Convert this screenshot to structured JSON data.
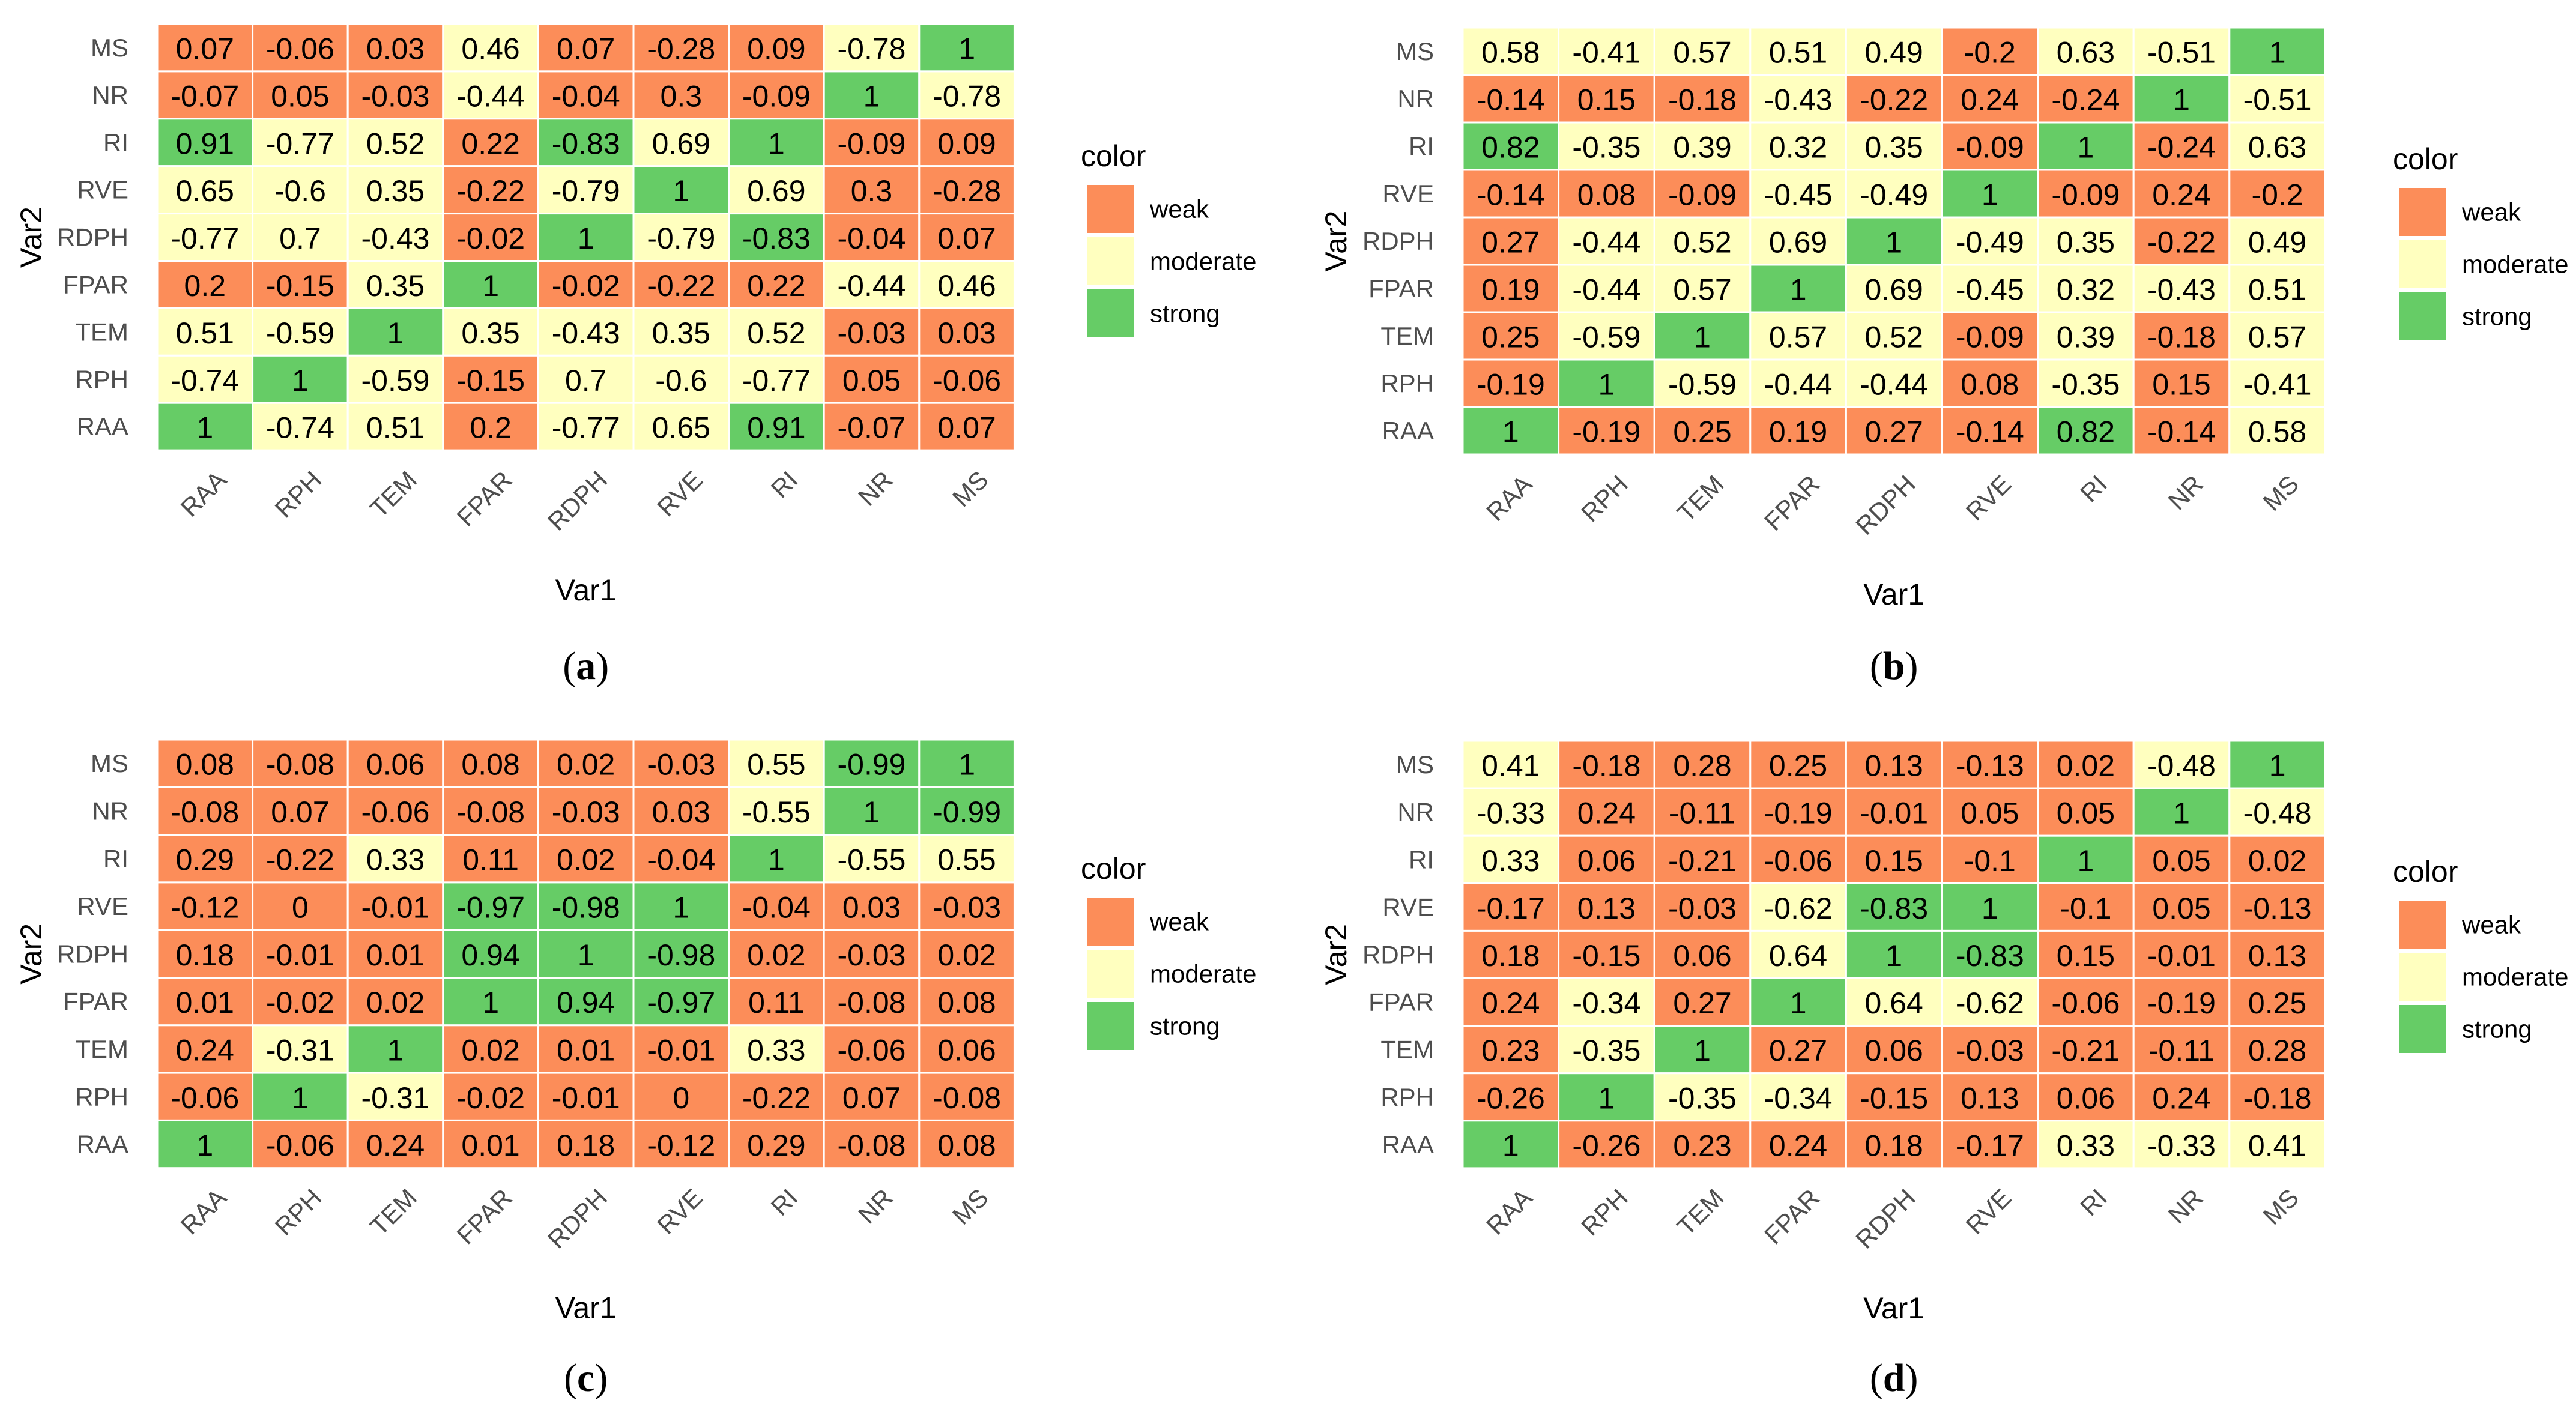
{
  "colors": {
    "weak": "#fc8d59",
    "moderate": "#ffffbf",
    "strong": "#66cc66",
    "grid": "#ffffff"
  },
  "chart_data": [
    {
      "type": "heatmap",
      "panel": "a",
      "xlabel": "Var1",
      "ylabel": "Var2",
      "x_categories": [
        "RAA",
        "RPH",
        "TEM",
        "FPAR",
        "RDPH",
        "RVE",
        "RI",
        "NR",
        "MS"
      ],
      "y_categories_top_to_bottom": [
        "MS",
        "NR",
        "RI",
        "RVE",
        "RDPH",
        "FPAR",
        "TEM",
        "RPH",
        "RAA"
      ],
      "legend_title": "color",
      "legend_entries": [
        "weak",
        "moderate",
        "strong"
      ],
      "rows": [
        {
          "values": [
            "0.07",
            "-0.06",
            "0.03",
            "0.46",
            "0.07",
            "-0.28",
            "0.09",
            "-0.78",
            "1"
          ],
          "classes": [
            "weak",
            "weak",
            "weak",
            "moderate",
            "weak",
            "weak",
            "weak",
            "moderate",
            "strong"
          ]
        },
        {
          "values": [
            "-0.07",
            "0.05",
            "-0.03",
            "-0.44",
            "-0.04",
            "0.3",
            "-0.09",
            "1",
            "-0.78"
          ],
          "classes": [
            "weak",
            "weak",
            "weak",
            "moderate",
            "weak",
            "weak",
            "weak",
            "strong",
            "moderate"
          ]
        },
        {
          "values": [
            "0.91",
            "-0.77",
            "0.52",
            "0.22",
            "-0.83",
            "0.69",
            "1",
            "-0.09",
            "0.09"
          ],
          "classes": [
            "strong",
            "moderate",
            "moderate",
            "weak",
            "strong",
            "moderate",
            "strong",
            "weak",
            "weak"
          ]
        },
        {
          "values": [
            "0.65",
            "-0.6",
            "0.35",
            "-0.22",
            "-0.79",
            "1",
            "0.69",
            "0.3",
            "-0.28"
          ],
          "classes": [
            "moderate",
            "moderate",
            "moderate",
            "weak",
            "moderate",
            "strong",
            "moderate",
            "weak",
            "weak"
          ]
        },
        {
          "values": [
            "-0.77",
            "0.7",
            "-0.43",
            "-0.02",
            "1",
            "-0.79",
            "-0.83",
            "-0.04",
            "0.07"
          ],
          "classes": [
            "moderate",
            "moderate",
            "moderate",
            "weak",
            "strong",
            "moderate",
            "strong",
            "weak",
            "weak"
          ]
        },
        {
          "values": [
            "0.2",
            "-0.15",
            "0.35",
            "1",
            "-0.02",
            "-0.22",
            "0.22",
            "-0.44",
            "0.46"
          ],
          "classes": [
            "weak",
            "weak",
            "moderate",
            "strong",
            "weak",
            "weak",
            "weak",
            "moderate",
            "moderate"
          ]
        },
        {
          "values": [
            "0.51",
            "-0.59",
            "1",
            "0.35",
            "-0.43",
            "0.35",
            "0.52",
            "-0.03",
            "0.03"
          ],
          "classes": [
            "moderate",
            "moderate",
            "strong",
            "moderate",
            "moderate",
            "moderate",
            "moderate",
            "weak",
            "weak"
          ]
        },
        {
          "values": [
            "-0.74",
            "1",
            "-0.59",
            "-0.15",
            "0.7",
            "-0.6",
            "-0.77",
            "0.05",
            "-0.06"
          ],
          "classes": [
            "moderate",
            "strong",
            "moderate",
            "weak",
            "moderate",
            "moderate",
            "moderate",
            "weak",
            "weak"
          ]
        },
        {
          "values": [
            "1",
            "-0.74",
            "0.51",
            "0.2",
            "-0.77",
            "0.65",
            "0.91",
            "-0.07",
            "0.07"
          ],
          "classes": [
            "strong",
            "moderate",
            "moderate",
            "weak",
            "moderate",
            "moderate",
            "strong",
            "weak",
            "weak"
          ]
        }
      ]
    },
    {
      "type": "heatmap",
      "panel": "b",
      "xlabel": "Var1",
      "ylabel": "Var2",
      "x_categories": [
        "RAA",
        "RPH",
        "TEM",
        "FPAR",
        "RDPH",
        "RVE",
        "RI",
        "NR",
        "MS"
      ],
      "y_categories_top_to_bottom": [
        "MS",
        "NR",
        "RI",
        "RVE",
        "RDPH",
        "FPAR",
        "TEM",
        "RPH",
        "RAA"
      ],
      "legend_title": "color",
      "legend_entries": [
        "weak",
        "moderate",
        "strong"
      ],
      "rows": [
        {
          "values": [
            "0.58",
            "-0.41",
            "0.57",
            "0.51",
            "0.49",
            "-0.2",
            "0.63",
            "-0.51",
            "1"
          ],
          "classes": [
            "moderate",
            "moderate",
            "moderate",
            "moderate",
            "moderate",
            "weak",
            "moderate",
            "moderate",
            "strong"
          ]
        },
        {
          "values": [
            "-0.14",
            "0.15",
            "-0.18",
            "-0.43",
            "-0.22",
            "0.24",
            "-0.24",
            "1",
            "-0.51"
          ],
          "classes": [
            "weak",
            "weak",
            "weak",
            "moderate",
            "weak",
            "weak",
            "weak",
            "strong",
            "moderate"
          ]
        },
        {
          "values": [
            "0.82",
            "-0.35",
            "0.39",
            "0.32",
            "0.35",
            "-0.09",
            "1",
            "-0.24",
            "0.63"
          ],
          "classes": [
            "strong",
            "moderate",
            "moderate",
            "moderate",
            "moderate",
            "weak",
            "strong",
            "weak",
            "moderate"
          ]
        },
        {
          "values": [
            "-0.14",
            "0.08",
            "-0.09",
            "-0.45",
            "-0.49",
            "1",
            "-0.09",
            "0.24",
            "-0.2"
          ],
          "classes": [
            "weak",
            "weak",
            "weak",
            "moderate",
            "moderate",
            "strong",
            "weak",
            "weak",
            "weak"
          ]
        },
        {
          "values": [
            "0.27",
            "-0.44",
            "0.52",
            "0.69",
            "1",
            "-0.49",
            "0.35",
            "-0.22",
            "0.49"
          ],
          "classes": [
            "weak",
            "moderate",
            "moderate",
            "moderate",
            "strong",
            "moderate",
            "moderate",
            "weak",
            "moderate"
          ]
        },
        {
          "values": [
            "0.19",
            "-0.44",
            "0.57",
            "1",
            "0.69",
            "-0.45",
            "0.32",
            "-0.43",
            "0.51"
          ],
          "classes": [
            "weak",
            "moderate",
            "moderate",
            "strong",
            "moderate",
            "moderate",
            "moderate",
            "moderate",
            "moderate"
          ]
        },
        {
          "values": [
            "0.25",
            "-0.59",
            "1",
            "0.57",
            "0.52",
            "-0.09",
            "0.39",
            "-0.18",
            "0.57"
          ],
          "classes": [
            "weak",
            "moderate",
            "strong",
            "moderate",
            "moderate",
            "weak",
            "moderate",
            "weak",
            "moderate"
          ]
        },
        {
          "values": [
            "-0.19",
            "1",
            "-0.59",
            "-0.44",
            "-0.44",
            "0.08",
            "-0.35",
            "0.15",
            "-0.41"
          ],
          "classes": [
            "weak",
            "strong",
            "moderate",
            "moderate",
            "moderate",
            "weak",
            "moderate",
            "weak",
            "moderate"
          ]
        },
        {
          "values": [
            "1",
            "-0.19",
            "0.25",
            "0.19",
            "0.27",
            "-0.14",
            "0.82",
            "-0.14",
            "0.58"
          ],
          "classes": [
            "strong",
            "weak",
            "weak",
            "weak",
            "weak",
            "weak",
            "strong",
            "weak",
            "moderate"
          ]
        }
      ]
    },
    {
      "type": "heatmap",
      "panel": "c",
      "xlabel": "Var1",
      "ylabel": "Var2",
      "x_categories": [
        "RAA",
        "RPH",
        "TEM",
        "FPAR",
        "RDPH",
        "RVE",
        "RI",
        "NR",
        "MS"
      ],
      "y_categories_top_to_bottom": [
        "MS",
        "NR",
        "RI",
        "RVE",
        "RDPH",
        "FPAR",
        "TEM",
        "RPH",
        "RAA"
      ],
      "legend_title": "color",
      "legend_entries": [
        "weak",
        "moderate",
        "strong"
      ],
      "rows": [
        {
          "values": [
            "0.08",
            "-0.08",
            "0.06",
            "0.08",
            "0.02",
            "-0.03",
            "0.55",
            "-0.99",
            "1"
          ],
          "classes": [
            "weak",
            "weak",
            "weak",
            "weak",
            "weak",
            "weak",
            "moderate",
            "strong",
            "strong"
          ]
        },
        {
          "values": [
            "-0.08",
            "0.07",
            "-0.06",
            "-0.08",
            "-0.03",
            "0.03",
            "-0.55",
            "1",
            "-0.99"
          ],
          "classes": [
            "weak",
            "weak",
            "weak",
            "weak",
            "weak",
            "weak",
            "moderate",
            "strong",
            "strong"
          ]
        },
        {
          "values": [
            "0.29",
            "-0.22",
            "0.33",
            "0.11",
            "0.02",
            "-0.04",
            "1",
            "-0.55",
            "0.55"
          ],
          "classes": [
            "weak",
            "weak",
            "moderate",
            "weak",
            "weak",
            "weak",
            "strong",
            "moderate",
            "moderate"
          ]
        },
        {
          "values": [
            "-0.12",
            "0",
            "-0.01",
            "-0.97",
            "-0.98",
            "1",
            "-0.04",
            "0.03",
            "-0.03"
          ],
          "classes": [
            "weak",
            "weak",
            "weak",
            "strong",
            "strong",
            "strong",
            "weak",
            "weak",
            "weak"
          ]
        },
        {
          "values": [
            "0.18",
            "-0.01",
            "0.01",
            "0.94",
            "1",
            "-0.98",
            "0.02",
            "-0.03",
            "0.02"
          ],
          "classes": [
            "weak",
            "weak",
            "weak",
            "strong",
            "strong",
            "strong",
            "weak",
            "weak",
            "weak"
          ]
        },
        {
          "values": [
            "0.01",
            "-0.02",
            "0.02",
            "1",
            "0.94",
            "-0.97",
            "0.11",
            "-0.08",
            "0.08"
          ],
          "classes": [
            "weak",
            "weak",
            "weak",
            "strong",
            "strong",
            "strong",
            "weak",
            "weak",
            "weak"
          ]
        },
        {
          "values": [
            "0.24",
            "-0.31",
            "1",
            "0.02",
            "0.01",
            "-0.01",
            "0.33",
            "-0.06",
            "0.06"
          ],
          "classes": [
            "weak",
            "moderate",
            "strong",
            "weak",
            "weak",
            "weak",
            "moderate",
            "weak",
            "weak"
          ]
        },
        {
          "values": [
            "-0.06",
            "1",
            "-0.31",
            "-0.02",
            "-0.01",
            "0",
            "-0.22",
            "0.07",
            "-0.08"
          ],
          "classes": [
            "weak",
            "strong",
            "moderate",
            "weak",
            "weak",
            "weak",
            "weak",
            "weak",
            "weak"
          ]
        },
        {
          "values": [
            "1",
            "-0.06",
            "0.24",
            "0.01",
            "0.18",
            "-0.12",
            "0.29",
            "-0.08",
            "0.08"
          ],
          "classes": [
            "strong",
            "weak",
            "weak",
            "weak",
            "weak",
            "weak",
            "weak",
            "weak",
            "weak"
          ]
        }
      ]
    },
    {
      "type": "heatmap",
      "panel": "d",
      "xlabel": "Var1",
      "ylabel": "Var2",
      "x_categories": [
        "RAA",
        "RPH",
        "TEM",
        "FPAR",
        "RDPH",
        "RVE",
        "RI",
        "NR",
        "MS"
      ],
      "y_categories_top_to_bottom": [
        "MS",
        "NR",
        "RI",
        "RVE",
        "RDPH",
        "FPAR",
        "TEM",
        "RPH",
        "RAA"
      ],
      "legend_title": "color",
      "legend_entries": [
        "weak",
        "moderate",
        "strong"
      ],
      "rows": [
        {
          "values": [
            "0.41",
            "-0.18",
            "0.28",
            "0.25",
            "0.13",
            "-0.13",
            "0.02",
            "-0.48",
            "1"
          ],
          "classes": [
            "moderate",
            "weak",
            "weak",
            "weak",
            "weak",
            "weak",
            "weak",
            "moderate",
            "strong"
          ]
        },
        {
          "values": [
            "-0.33",
            "0.24",
            "-0.11",
            "-0.19",
            "-0.01",
            "0.05",
            "0.05",
            "1",
            "-0.48"
          ],
          "classes": [
            "moderate",
            "weak",
            "weak",
            "weak",
            "weak",
            "weak",
            "weak",
            "strong",
            "moderate"
          ]
        },
        {
          "values": [
            "0.33",
            "0.06",
            "-0.21",
            "-0.06",
            "0.15",
            "-0.1",
            "1",
            "0.05",
            "0.02"
          ],
          "classes": [
            "moderate",
            "weak",
            "weak",
            "weak",
            "weak",
            "weak",
            "strong",
            "weak",
            "weak"
          ]
        },
        {
          "values": [
            "-0.17",
            "0.13",
            "-0.03",
            "-0.62",
            "-0.83",
            "1",
            "-0.1",
            "0.05",
            "-0.13"
          ],
          "classes": [
            "weak",
            "weak",
            "weak",
            "moderate",
            "strong",
            "strong",
            "weak",
            "weak",
            "weak"
          ]
        },
        {
          "values": [
            "0.18",
            "-0.15",
            "0.06",
            "0.64",
            "1",
            "-0.83",
            "0.15",
            "-0.01",
            "0.13"
          ],
          "classes": [
            "weak",
            "weak",
            "weak",
            "moderate",
            "strong",
            "strong",
            "weak",
            "weak",
            "weak"
          ]
        },
        {
          "values": [
            "0.24",
            "-0.34",
            "0.27",
            "1",
            "0.64",
            "-0.62",
            "-0.06",
            "-0.19",
            "0.25"
          ],
          "classes": [
            "weak",
            "moderate",
            "weak",
            "strong",
            "moderate",
            "moderate",
            "weak",
            "weak",
            "weak"
          ]
        },
        {
          "values": [
            "0.23",
            "-0.35",
            "1",
            "0.27",
            "0.06",
            "-0.03",
            "-0.21",
            "-0.11",
            "0.28"
          ],
          "classes": [
            "weak",
            "moderate",
            "strong",
            "weak",
            "weak",
            "weak",
            "weak",
            "weak",
            "weak"
          ]
        },
        {
          "values": [
            "-0.26",
            "1",
            "-0.35",
            "-0.34",
            "-0.15",
            "0.13",
            "0.06",
            "0.24",
            "-0.18"
          ],
          "classes": [
            "weak",
            "strong",
            "moderate",
            "moderate",
            "weak",
            "weak",
            "weak",
            "weak",
            "weak"
          ]
        },
        {
          "values": [
            "1",
            "-0.26",
            "0.23",
            "0.24",
            "0.18",
            "-0.17",
            "0.33",
            "-0.33",
            "0.41"
          ],
          "classes": [
            "strong",
            "weak",
            "weak",
            "weak",
            "weak",
            "weak",
            "moderate",
            "moderate",
            "moderate"
          ]
        }
      ]
    }
  ]
}
